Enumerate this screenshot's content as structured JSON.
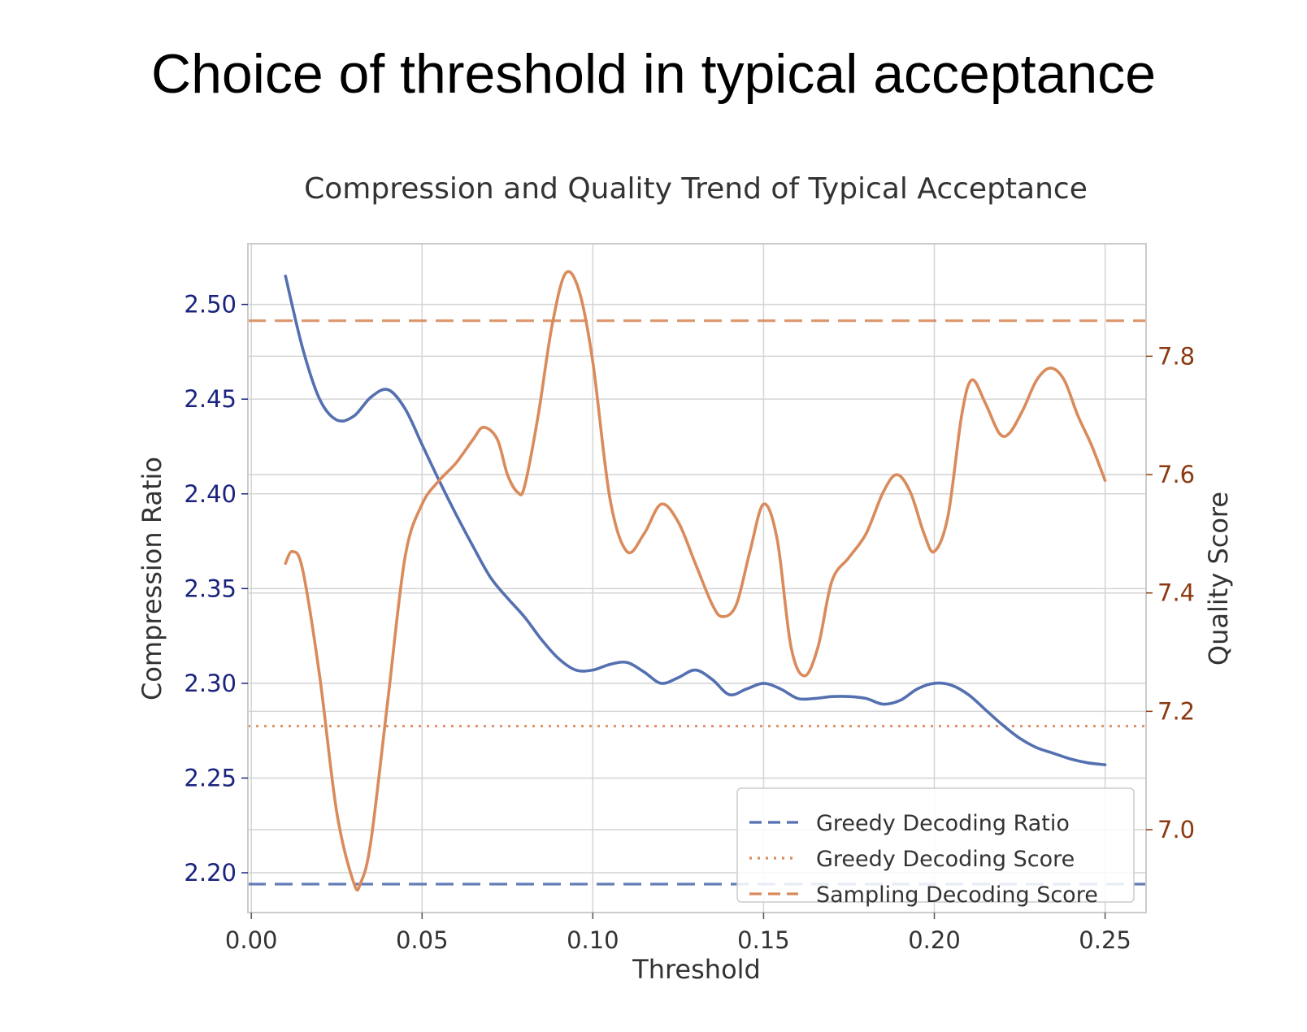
{
  "page": {
    "title": "Choice of threshold in typical acceptance"
  },
  "colors": {
    "ratio": "#5470b0",
    "score": "#d98b5c",
    "left_axis": "#1a237e",
    "right_axis": "#8b3a10",
    "grid": "#d4d4d4",
    "text": "#333333"
  },
  "chart_data": {
    "type": "line",
    "title": "Compression and Quality Trend of Typical Acceptance",
    "xlabel": "Threshold",
    "ylabel_left": "Compression Ratio",
    "ylabel_right": "Quality Score",
    "xlim": [
      -0.001,
      0.262
    ],
    "ylim_left": [
      2.179,
      2.532
    ],
    "ylim_right": [
      6.86,
      7.99
    ],
    "x_ticks": [
      "0.00",
      "0.05",
      "0.10",
      "0.15",
      "0.20",
      "0.25"
    ],
    "x_tick_values": [
      0.0,
      0.05,
      0.1,
      0.15,
      0.2,
      0.25
    ],
    "y_left_ticks": [
      "2.20",
      "2.25",
      "2.30",
      "2.35",
      "2.40",
      "2.45",
      "2.50"
    ],
    "y_left_tick_values": [
      2.2,
      2.25,
      2.3,
      2.35,
      2.4,
      2.45,
      2.5
    ],
    "y_right_ticks": [
      "7.0",
      "7.2",
      "7.4",
      "7.6",
      "7.8"
    ],
    "y_right_tick_values": [
      7.0,
      7.2,
      7.4,
      7.6,
      7.8
    ],
    "grid": true,
    "legend_position": "lower-right",
    "series": [
      {
        "name": "Compression Ratio",
        "axis": "left",
        "x": [
          0.01,
          0.015,
          0.02,
          0.025,
          0.03,
          0.035,
          0.04,
          0.045,
          0.05,
          0.055,
          0.06,
          0.065,
          0.07,
          0.075,
          0.08,
          0.085,
          0.09,
          0.095,
          0.1,
          0.105,
          0.11,
          0.115,
          0.12,
          0.125,
          0.13,
          0.135,
          0.14,
          0.145,
          0.15,
          0.155,
          0.16,
          0.165,
          0.17,
          0.175,
          0.18,
          0.185,
          0.19,
          0.195,
          0.2,
          0.205,
          0.21,
          0.215,
          0.22,
          0.225,
          0.23,
          0.235,
          0.24,
          0.245,
          0.25
        ],
        "values": [
          2.515,
          2.477,
          2.45,
          2.439,
          2.441,
          2.451,
          2.455,
          2.445,
          2.426,
          2.407,
          2.389,
          2.372,
          2.356,
          2.345,
          2.335,
          2.323,
          2.313,
          2.307,
          2.307,
          2.31,
          2.311,
          2.306,
          2.3,
          2.303,
          2.307,
          2.302,
          2.294,
          2.297,
          2.3,
          2.297,
          2.292,
          2.292,
          2.293,
          2.293,
          2.292,
          2.289,
          2.291,
          2.297,
          2.3,
          2.299,
          2.294,
          2.286,
          2.278,
          2.271,
          2.266,
          2.263,
          2.26,
          2.258,
          2.257
        ]
      },
      {
        "name": "Quality Score",
        "axis": "right",
        "x": [
          0.01,
          0.012,
          0.015,
          0.02,
          0.025,
          0.03,
          0.032,
          0.035,
          0.04,
          0.045,
          0.05,
          0.055,
          0.06,
          0.065,
          0.068,
          0.072,
          0.075,
          0.078,
          0.08,
          0.084,
          0.088,
          0.092,
          0.096,
          0.1,
          0.105,
          0.11,
          0.115,
          0.12,
          0.125,
          0.13,
          0.135,
          0.138,
          0.142,
          0.146,
          0.15,
          0.154,
          0.158,
          0.162,
          0.166,
          0.17,
          0.175,
          0.18,
          0.185,
          0.189,
          0.193,
          0.197,
          0.2,
          0.204,
          0.208,
          0.211,
          0.215,
          0.219,
          0.222,
          0.226,
          0.23,
          0.234,
          0.238,
          0.242,
          0.246,
          0.25
        ],
        "values": [
          7.45,
          7.47,
          7.44,
          7.26,
          7.03,
          6.91,
          6.91,
          6.98,
          7.22,
          7.46,
          7.55,
          7.59,
          7.62,
          7.66,
          7.68,
          7.66,
          7.6,
          7.57,
          7.58,
          7.7,
          7.85,
          7.94,
          7.91,
          7.79,
          7.56,
          7.47,
          7.5,
          7.55,
          7.52,
          7.45,
          7.38,
          7.36,
          7.38,
          7.47,
          7.55,
          7.49,
          7.31,
          7.26,
          7.31,
          7.42,
          7.46,
          7.5,
          7.57,
          7.6,
          7.57,
          7.5,
          7.47,
          7.53,
          7.7,
          7.76,
          7.72,
          7.67,
          7.67,
          7.71,
          7.76,
          7.78,
          7.76,
          7.7,
          7.65,
          7.59
        ]
      }
    ],
    "reference_lines": [
      {
        "name": "Greedy Decoding Ratio",
        "axis": "left",
        "value": 2.194,
        "style": "dashed",
        "color": "#5470b0"
      },
      {
        "name": "Greedy Decoding Score",
        "axis": "right",
        "value": 7.175,
        "style": "dotted",
        "color": "#d98b5c"
      },
      {
        "name": "Sampling Decoding Score",
        "axis": "right",
        "value": 7.86,
        "style": "dashed",
        "color": "#d98b5c"
      }
    ],
    "legend": [
      "Greedy Decoding Ratio",
      "Greedy Decoding Score",
      "Sampling Decoding Score"
    ]
  }
}
